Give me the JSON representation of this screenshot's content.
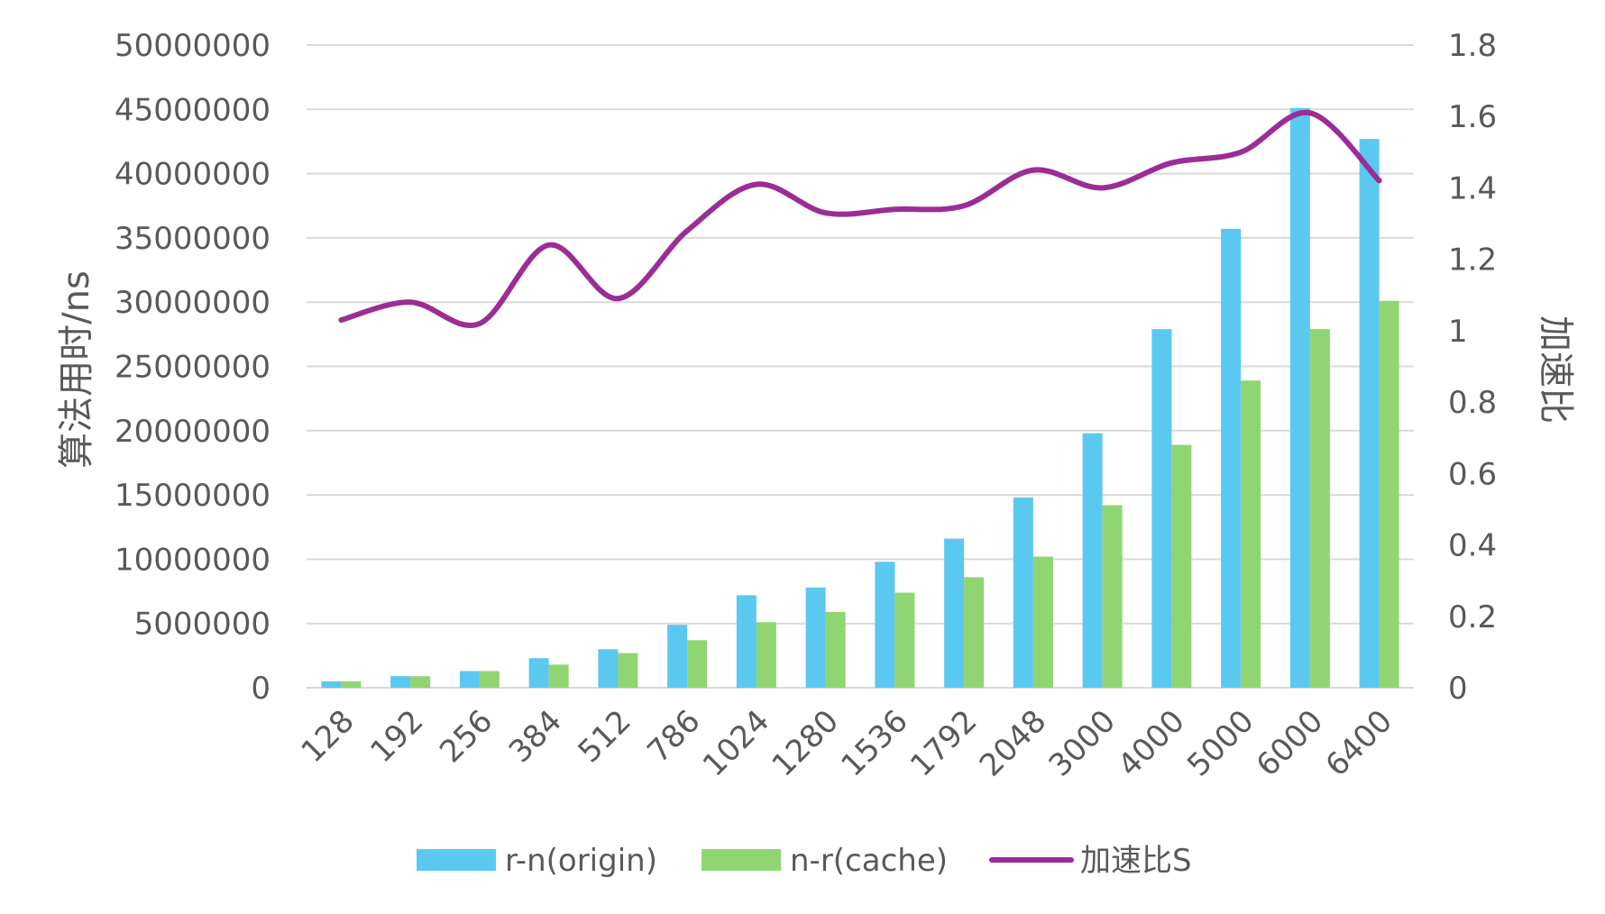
{
  "chart_data": {
    "type": "bar",
    "categories": [
      "128",
      "192",
      "256",
      "384",
      "512",
      "786",
      "1024",
      "1280",
      "1536",
      "1792",
      "2048",
      "3000",
      "4000",
      "5000",
      "6000",
      "6400"
    ],
    "series": [
      {
        "name": "r-n(origin)",
        "type": "bar",
        "axis": "left",
        "color": "#5bc8f0",
        "values": [
          500000,
          900000,
          1300000,
          2300000,
          3000000,
          4900000,
          7200000,
          7800000,
          9800000,
          11600000,
          14800000,
          19800000,
          27900000,
          35700000,
          45100000,
          42700000
        ]
      },
      {
        "name": "n-r(cache)",
        "type": "bar",
        "axis": "left",
        "color": "#8fd672",
        "values": [
          500000,
          900000,
          1300000,
          1800000,
          2700000,
          3700000,
          5100000,
          5900000,
          7400000,
          8600000,
          10200000,
          14200000,
          18900000,
          23900000,
          27900000,
          30100000
        ]
      },
      {
        "name": "加速比S",
        "type": "line",
        "axis": "right",
        "color": "#9b2d96",
        "values": [
          1.03,
          1.08,
          1.02,
          1.24,
          1.09,
          1.28,
          1.41,
          1.33,
          1.34,
          1.35,
          1.45,
          1.4,
          1.47,
          1.5,
          1.61,
          1.42
        ]
      }
    ],
    "ylabel": "算法用时/ns",
    "y2label": "加速比",
    "ylim": [
      0,
      50000000
    ],
    "y2lim": [
      0,
      1.8
    ],
    "yticks": [
      "0",
      "5000000",
      "10000000",
      "15000000",
      "20000000",
      "25000000",
      "30000000",
      "35000000",
      "40000000",
      "45000000",
      "50000000"
    ],
    "y2ticks": [
      "0",
      "0.2",
      "0.4",
      "0.6",
      "0.8",
      "1",
      "1.2",
      "1.4",
      "1.6",
      "1.8"
    ],
    "grid": true,
    "legend_position": "bottom"
  }
}
